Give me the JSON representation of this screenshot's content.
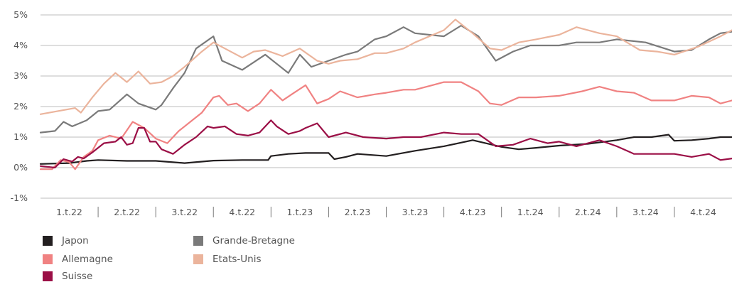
{
  "chart_data": {
    "type": "line",
    "ylim": [
      -1,
      5
    ],
    "yticks": [
      "-1%",
      "0%",
      "1%",
      "2%",
      "3%",
      "4%",
      "5%"
    ],
    "categories": [
      "1.t.22",
      "2.t.22",
      "3.t.22",
      "4.t.22",
      "1.t.23",
      "2.t.23",
      "3.t.23",
      "4.t.23",
      "1.t.24",
      "2.t.24",
      "3.t.24",
      "4.t.24"
    ],
    "x_range": [
      0,
      12
    ],
    "grid": "horizontal",
    "legend_position": "bottom-left",
    "series": [
      {
        "name": "Japon",
        "color": "#231f20",
        "points": [
          [
            0,
            0.12
          ],
          [
            0.5,
            0.15
          ],
          [
            0.8,
            0.22
          ],
          [
            1,
            0.25
          ],
          [
            1.5,
            0.22
          ],
          [
            2,
            0.22
          ],
          [
            2.5,
            0.15
          ],
          [
            3,
            0.23
          ],
          [
            3.5,
            0.25
          ],
          [
            3.95,
            0.25
          ],
          [
            4.0,
            0.38
          ],
          [
            4.3,
            0.45
          ],
          [
            4.6,
            0.48
          ],
          [
            5.0,
            0.48
          ],
          [
            5.1,
            0.28
          ],
          [
            5.3,
            0.35
          ],
          [
            5.5,
            0.45
          ],
          [
            6.0,
            0.38
          ],
          [
            6.5,
            0.55
          ],
          [
            7.0,
            0.7
          ],
          [
            7.5,
            0.9
          ],
          [
            8.0,
            0.68
          ],
          [
            8.3,
            0.6
          ],
          [
            8.6,
            0.65
          ],
          [
            9.0,
            0.72
          ],
          [
            9.5,
            0.78
          ],
          [
            10.0,
            0.9
          ],
          [
            10.3,
            1.0
          ],
          [
            10.6,
            1.0
          ],
          [
            10.9,
            1.08
          ],
          [
            11.0,
            0.88
          ],
          [
            11.3,
            0.9
          ],
          [
            11.6,
            0.95
          ],
          [
            11.8,
            1.0
          ],
          [
            12.0,
            1.0
          ]
        ]
      },
      {
        "name": "Grande-Bretagne",
        "color": "#7a7a7a",
        "points": [
          [
            0,
            1.15
          ],
          [
            0.25,
            1.2
          ],
          [
            0.4,
            1.5
          ],
          [
            0.55,
            1.35
          ],
          [
            0.8,
            1.55
          ],
          [
            1.0,
            1.85
          ],
          [
            1.2,
            1.9
          ],
          [
            1.5,
            2.4
          ],
          [
            1.7,
            2.1
          ],
          [
            2.0,
            1.9
          ],
          [
            2.1,
            2.05
          ],
          [
            2.3,
            2.6
          ],
          [
            2.5,
            3.1
          ],
          [
            2.7,
            3.9
          ],
          [
            3.0,
            4.3
          ],
          [
            3.15,
            3.5
          ],
          [
            3.5,
            3.2
          ],
          [
            3.9,
            3.7
          ],
          [
            4.1,
            3.4
          ],
          [
            4.3,
            3.1
          ],
          [
            4.5,
            3.7
          ],
          [
            4.7,
            3.3
          ],
          [
            5.0,
            3.5
          ],
          [
            5.3,
            3.7
          ],
          [
            5.5,
            3.8
          ],
          [
            5.8,
            4.2
          ],
          [
            6.0,
            4.3
          ],
          [
            6.3,
            4.6
          ],
          [
            6.5,
            4.4
          ],
          [
            7.0,
            4.3
          ],
          [
            7.3,
            4.65
          ],
          [
            7.6,
            4.3
          ],
          [
            7.9,
            3.5
          ],
          [
            8.2,
            3.8
          ],
          [
            8.5,
            4.0
          ],
          [
            9.0,
            4.0
          ],
          [
            9.3,
            4.1
          ],
          [
            9.7,
            4.1
          ],
          [
            10.0,
            4.2
          ],
          [
            10.5,
            4.1
          ],
          [
            11.0,
            3.8
          ],
          [
            11.3,
            3.85
          ],
          [
            11.6,
            4.2
          ],
          [
            11.8,
            4.4
          ],
          [
            12.0,
            4.45
          ]
        ]
      },
      {
        "name": "Etats-Unis",
        "color": "#ebb49c",
        "points": [
          [
            0,
            1.75
          ],
          [
            0.3,
            1.85
          ],
          [
            0.6,
            1.95
          ],
          [
            0.7,
            1.8
          ],
          [
            0.9,
            2.3
          ],
          [
            1.1,
            2.75
          ],
          [
            1.3,
            3.1
          ],
          [
            1.5,
            2.8
          ],
          [
            1.7,
            3.15
          ],
          [
            1.9,
            2.75
          ],
          [
            2.1,
            2.8
          ],
          [
            2.3,
            3.0
          ],
          [
            2.5,
            3.3
          ],
          [
            2.8,
            3.8
          ],
          [
            3.0,
            4.1
          ],
          [
            3.2,
            3.9
          ],
          [
            3.5,
            3.6
          ],
          [
            3.7,
            3.8
          ],
          [
            3.9,
            3.85
          ],
          [
            4.2,
            3.65
          ],
          [
            4.5,
            3.9
          ],
          [
            4.8,
            3.5
          ],
          [
            5.0,
            3.4
          ],
          [
            5.2,
            3.5
          ],
          [
            5.5,
            3.55
          ],
          [
            5.8,
            3.75
          ],
          [
            6.0,
            3.75
          ],
          [
            6.3,
            3.9
          ],
          [
            6.5,
            4.1
          ],
          [
            7.0,
            4.5
          ],
          [
            7.2,
            4.85
          ],
          [
            7.5,
            4.4
          ],
          [
            7.8,
            3.9
          ],
          [
            8.0,
            3.85
          ],
          [
            8.3,
            4.1
          ],
          [
            8.6,
            4.2
          ],
          [
            9.0,
            4.35
          ],
          [
            9.3,
            4.6
          ],
          [
            9.7,
            4.4
          ],
          [
            10.0,
            4.3
          ],
          [
            10.4,
            3.85
          ],
          [
            10.7,
            3.8
          ],
          [
            11.0,
            3.7
          ],
          [
            11.4,
            3.95
          ],
          [
            11.8,
            4.3
          ],
          [
            12.0,
            4.5
          ]
        ]
      },
      {
        "name": "Allemagne",
        "color": "#f08282",
        "points": [
          [
            0,
            -0.05
          ],
          [
            0.2,
            -0.05
          ],
          [
            0.35,
            0.25
          ],
          [
            0.5,
            0.18
          ],
          [
            0.6,
            -0.05
          ],
          [
            0.75,
            0.35
          ],
          [
            0.9,
            0.55
          ],
          [
            1.0,
            0.9
          ],
          [
            1.2,
            1.05
          ],
          [
            1.4,
            0.95
          ],
          [
            1.6,
            1.5
          ],
          [
            1.8,
            1.3
          ],
          [
            2.0,
            0.95
          ],
          [
            2.2,
            0.8
          ],
          [
            2.4,
            1.2
          ],
          [
            2.6,
            1.5
          ],
          [
            2.8,
            1.8
          ],
          [
            3.0,
            2.3
          ],
          [
            3.1,
            2.35
          ],
          [
            3.25,
            2.05
          ],
          [
            3.4,
            2.1
          ],
          [
            3.6,
            1.85
          ],
          [
            3.8,
            2.1
          ],
          [
            4.0,
            2.55
          ],
          [
            4.2,
            2.2
          ],
          [
            4.4,
            2.45
          ],
          [
            4.6,
            2.7
          ],
          [
            4.8,
            2.1
          ],
          [
            5.0,
            2.25
          ],
          [
            5.2,
            2.5
          ],
          [
            5.5,
            2.3
          ],
          [
            5.8,
            2.4
          ],
          [
            6.0,
            2.45
          ],
          [
            6.3,
            2.55
          ],
          [
            6.5,
            2.55
          ],
          [
            6.8,
            2.7
          ],
          [
            7.0,
            2.8
          ],
          [
            7.3,
            2.8
          ],
          [
            7.6,
            2.5
          ],
          [
            7.8,
            2.1
          ],
          [
            8.0,
            2.05
          ],
          [
            8.3,
            2.3
          ],
          [
            8.6,
            2.3
          ],
          [
            9.0,
            2.35
          ],
          [
            9.4,
            2.5
          ],
          [
            9.7,
            2.65
          ],
          [
            10.0,
            2.5
          ],
          [
            10.3,
            2.45
          ],
          [
            10.6,
            2.2
          ],
          [
            11.0,
            2.2
          ],
          [
            11.3,
            2.35
          ],
          [
            11.6,
            2.3
          ],
          [
            11.8,
            2.1
          ],
          [
            12.0,
            2.2
          ]
        ]
      },
      {
        "name": "Suisse",
        "color": "#9b0f46",
        "points": [
          [
            0,
            0.05
          ],
          [
            0.25,
            0.0
          ],
          [
            0.4,
            0.28
          ],
          [
            0.55,
            0.2
          ],
          [
            0.65,
            0.35
          ],
          [
            0.75,
            0.3
          ],
          [
            0.9,
            0.5
          ],
          [
            1.1,
            0.8
          ],
          [
            1.3,
            0.85
          ],
          [
            1.4,
            1.0
          ],
          [
            1.5,
            0.75
          ],
          [
            1.6,
            0.8
          ],
          [
            1.7,
            1.3
          ],
          [
            1.8,
            1.3
          ],
          [
            1.9,
            0.85
          ],
          [
            2.0,
            0.85
          ],
          [
            2.1,
            0.6
          ],
          [
            2.3,
            0.45
          ],
          [
            2.5,
            0.75
          ],
          [
            2.7,
            1.0
          ],
          [
            2.9,
            1.35
          ],
          [
            3.0,
            1.3
          ],
          [
            3.2,
            1.35
          ],
          [
            3.4,
            1.1
          ],
          [
            3.6,
            1.05
          ],
          [
            3.8,
            1.15
          ],
          [
            4.0,
            1.55
          ],
          [
            4.1,
            1.35
          ],
          [
            4.3,
            1.1
          ],
          [
            4.5,
            1.2
          ],
          [
            4.6,
            1.3
          ],
          [
            4.8,
            1.45
          ],
          [
            5.0,
            1.0
          ],
          [
            5.3,
            1.15
          ],
          [
            5.6,
            1.0
          ],
          [
            6.0,
            0.95
          ],
          [
            6.3,
            1.0
          ],
          [
            6.6,
            1.0
          ],
          [
            7.0,
            1.15
          ],
          [
            7.3,
            1.1
          ],
          [
            7.6,
            1.1
          ],
          [
            7.9,
            0.7
          ],
          [
            8.2,
            0.75
          ],
          [
            8.5,
            0.95
          ],
          [
            8.8,
            0.8
          ],
          [
            9.0,
            0.85
          ],
          [
            9.3,
            0.7
          ],
          [
            9.7,
            0.9
          ],
          [
            10.0,
            0.7
          ],
          [
            10.3,
            0.45
          ],
          [
            10.6,
            0.45
          ],
          [
            11.0,
            0.45
          ],
          [
            11.3,
            0.35
          ],
          [
            11.6,
            0.45
          ],
          [
            11.8,
            0.25
          ],
          [
            12.0,
            0.3
          ]
        ]
      }
    ],
    "legend": [
      {
        "label": "Japon",
        "color": "#231f20"
      },
      {
        "label": "Grande-Bretagne",
        "color": "#7a7a7a"
      },
      {
        "label": "Allemagne",
        "color": "#f08282"
      },
      {
        "label": "Etats-Unis",
        "color": "#ebb49c"
      },
      {
        "label": "Suisse",
        "color": "#9b0f46"
      }
    ]
  }
}
